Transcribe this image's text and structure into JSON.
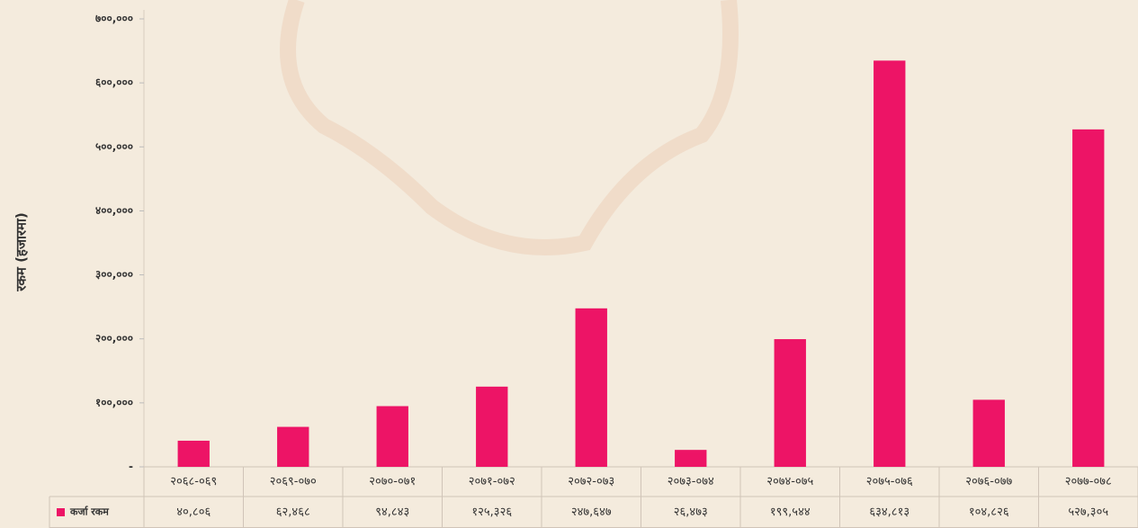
{
  "chart_data": {
    "type": "bar",
    "y_label": "रकम (हजारमा)",
    "categories": [
      "२०६८-०६९",
      "२०६९-०७०",
      "२०७०-०७१",
      "२०७१-०७२",
      "२०७२-०७३",
      "२०७३-०७४",
      "२०७४-०७५",
      "२०७५-०७६",
      "२०७६-०७७",
      "२०७७-०७८"
    ],
    "series": [
      {
        "name": "कर्जा रकम",
        "color": "#ed1466",
        "values": [
          40806,
          62468,
          94843,
          125326,
          247647,
          26473,
          199544,
          634813,
          104826,
          527305
        ],
        "value_labels": [
          "४०,८०६",
          "६२,४६८",
          "९४,८४३",
          "१२५,३२६",
          "२४७,६४७",
          "२६,४७३",
          "१९९,५४४",
          "६३४,८१३",
          "१०४,८२६",
          "५२७,३०५"
        ]
      }
    ],
    "ylim": [
      0,
      700000
    ],
    "yticks": [
      {
        "value": 0,
        "label": "-"
      },
      {
        "value": 100000,
        "label": "१००,०००"
      },
      {
        "value": 200000,
        "label": "२००,०००"
      },
      {
        "value": 300000,
        "label": "३००,०००"
      },
      {
        "value": 400000,
        "label": "४००,०००"
      },
      {
        "value": 500000,
        "label": "५००,०००"
      },
      {
        "value": 600000,
        "label": "६००,०००"
      },
      {
        "value": 700000,
        "label": "७००,०००"
      }
    ],
    "grid": false
  }
}
